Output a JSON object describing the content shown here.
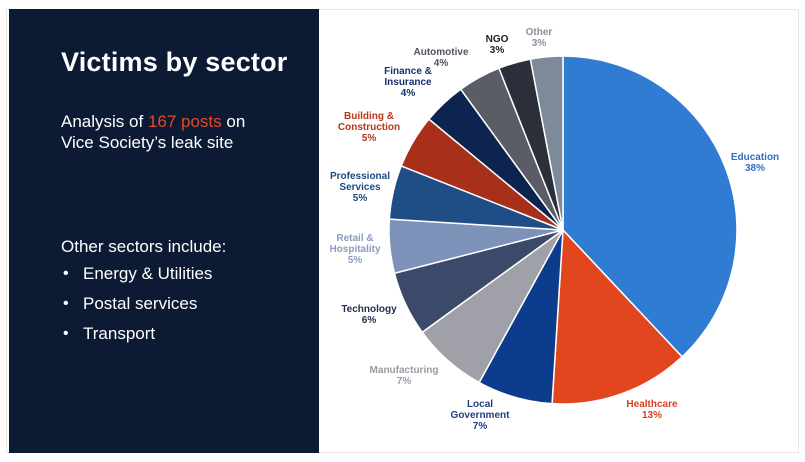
{
  "panel": {
    "title": "Victims by sector",
    "analysis_prefix": "Analysis of ",
    "analysis_highlight": "167 posts",
    "analysis_middle": " on",
    "analysis_line2": "Vice Society’s leak site",
    "other_heading": "Other sectors include:",
    "other_sectors": [
      "Energy & Utilities",
      "Postal services",
      "Transport"
    ]
  },
  "colors": {
    "panel_background": "#0c1a33",
    "highlight": "#e34a2a"
  },
  "chart_data": {
    "type": "pie",
    "title": "",
    "start": "12 o'clock, clockwise",
    "slices": [
      {
        "label": [
          "Education"
        ],
        "value_text": "38%",
        "value": 38,
        "color": "#2f7cd2",
        "label_color": "#2f6fbf"
      },
      {
        "label": [
          "Healthcare"
        ],
        "value_text": "13%",
        "value": 13,
        "color": "#e1461f",
        "label_color": "#d8401d"
      },
      {
        "label": [
          "Local",
          "Government"
        ],
        "value_text": "7%",
        "value": 7,
        "color": "#0d3c8c",
        "label_color": "#1f3f80"
      },
      {
        "label": [
          "Manufacturing"
        ],
        "value_text": "7%",
        "value": 7,
        "color": "#9fa0a8",
        "label_color": "#9a9ba3"
      },
      {
        "label": [
          "Technology"
        ],
        "value_text": "6%",
        "value": 6,
        "color": "#3b4a68",
        "label_color": "#1f2d4d"
      },
      {
        "label": [
          "Retail &",
          "Hospitality"
        ],
        "value_text": "5%",
        "value": 5,
        "color": "#7d92b9",
        "label_color": "#8c9cbc"
      },
      {
        "label": [
          "Professional",
          "Services"
        ],
        "value_text": "5%",
        "value": 5,
        "color": "#1f4e86",
        "label_color": "#1f4a80"
      },
      {
        "label": [
          "Building &",
          "Construction"
        ],
        "value_text": "5%",
        "value": 5,
        "color": "#a8301a",
        "label_color": "#b5361d"
      },
      {
        "label": [
          "Finance &",
          "Insurance"
        ],
        "value_text": "4%",
        "value": 4,
        "color": "#0e2450",
        "label_color": "#16306a"
      },
      {
        "label": [
          "Automotive"
        ],
        "value_text": "4%",
        "value": 4,
        "color": "#5a5d66",
        "label_color": "#505360"
      },
      {
        "label": [
          "NGO"
        ],
        "value_text": "3%",
        "value": 3,
        "color": "#2a2f3a",
        "label_color": "#1a1e28"
      },
      {
        "label": [
          "Other"
        ],
        "value_text": "3%",
        "value": 3,
        "color": "#7d8a99",
        "label_color": "#8a8f99"
      }
    ]
  }
}
